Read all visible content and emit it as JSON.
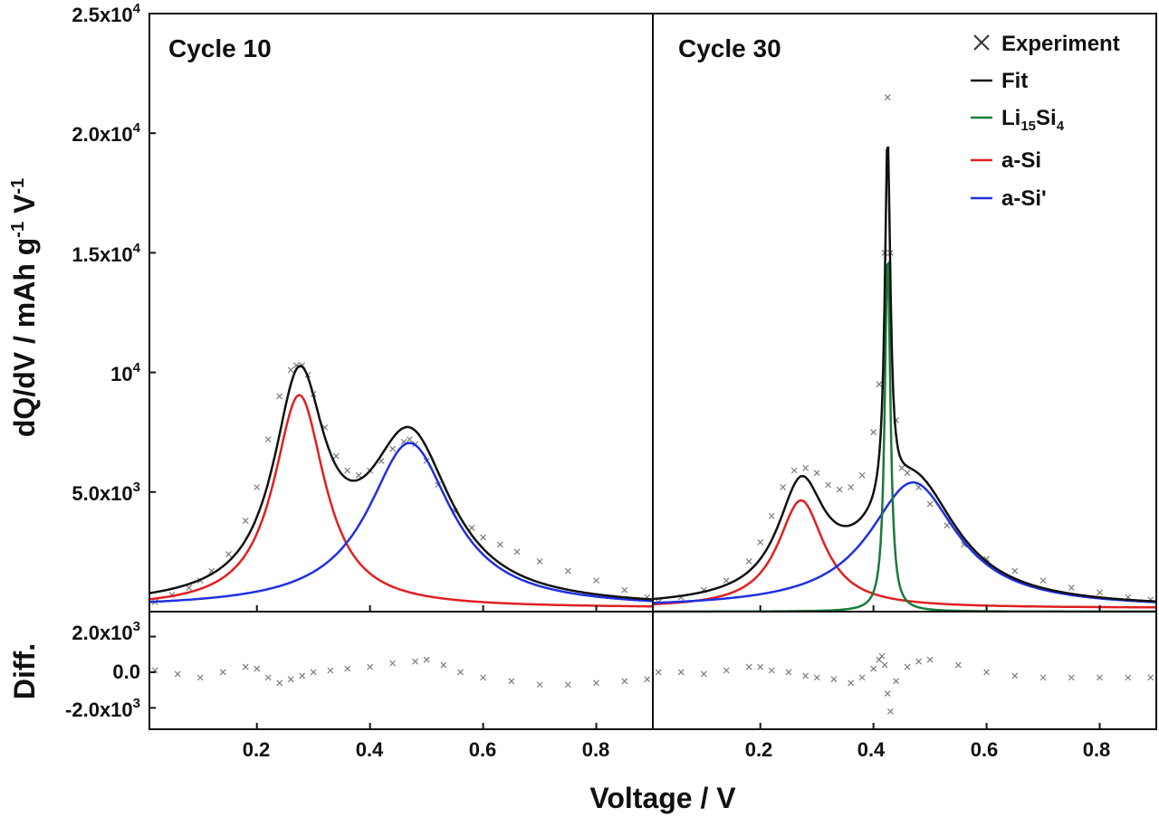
{
  "figure": {
    "xlabel": "Voltage / V",
    "ylabel": "dQ/dV / mAh g",
    "ylabel_sup1": "-1",
    "ylabel_mid": " V",
    "ylabel_sup2": "-1",
    "diff_label": "Diff.",
    "x_ticks": [
      "0.2",
      "0.4",
      "0.6",
      "0.8"
    ],
    "y_ticks": [
      {
        "mant": "2.5x10",
        "exp": "4"
      },
      {
        "mant": "2.0x10",
        "exp": "4"
      },
      {
        "mant": "1.5x10",
        "exp": "4"
      },
      {
        "mant": "10",
        "exp": "4"
      },
      {
        "mant": "5.0x10",
        "exp": "3"
      }
    ],
    "diff_ticks": [
      {
        "mant": "2.0x10",
        "exp": "3"
      },
      {
        "mant": "0.0",
        "exp": ""
      },
      {
        "mant": "-2.0x10",
        "exp": "3"
      }
    ],
    "legend": {
      "experiment": "Experiment",
      "fit": "Fit",
      "li_main": "Li",
      "li_sub1": "15",
      "li_mid": "Si",
      "li_sub2": "4",
      "asi": "a-Si",
      "asi_prime": "a-Si'"
    }
  },
  "colors": {
    "experiment": "#7a7a7a",
    "fit": "#111111",
    "li15si4": "#1a7a3a",
    "asi": "#e02020",
    "asi_prime": "#2030e0"
  },
  "chart_data": [
    {
      "type": "line",
      "title": "Cycle 10",
      "xlabel": "Voltage / V",
      "ylabel": "dQ/dV / mAh g-1 V-1",
      "xlim": [
        0.01,
        0.9
      ],
      "ylim": [
        0,
        25000
      ],
      "grid": false,
      "components": {
        "asi": {
          "center": 0.275,
          "height": 8900,
          "width": 0.055,
          "base": 150
        },
        "asi_prime": {
          "center": 0.47,
          "height": 6900,
          "width": 0.09,
          "base": 150
        }
      },
      "series": [
        {
          "name": "Experiment",
          "style": "markers-x",
          "x": [
            0.02,
            0.05,
            0.08,
            0.1,
            0.12,
            0.15,
            0.18,
            0.2,
            0.22,
            0.24,
            0.26,
            0.27,
            0.28,
            0.29,
            0.3,
            0.32,
            0.34,
            0.36,
            0.38,
            0.4,
            0.42,
            0.44,
            0.46,
            0.47,
            0.48,
            0.5,
            0.52,
            0.55,
            0.58,
            0.6,
            0.63,
            0.66,
            0.7,
            0.75,
            0.8,
            0.85,
            0.89
          ],
          "y": [
            400,
            700,
            1000,
            1300,
            1700,
            2400,
            3800,
            5200,
            7200,
            9000,
            10100,
            10300,
            10300,
            9900,
            9100,
            7700,
            6500,
            5900,
            5700,
            5900,
            6300,
            6800,
            7100,
            7200,
            7000,
            6300,
            5300,
            4200,
            3500,
            3100,
            2800,
            2500,
            2100,
            1700,
            1300,
            900,
            600
          ]
        },
        {
          "name": "Fit",
          "style": "line",
          "x": [],
          "y": []
        },
        {
          "name": "a-Si",
          "style": "line",
          "x": [],
          "y": []
        },
        {
          "name": "a-Si'",
          "style": "line",
          "x": [],
          "y": []
        }
      ],
      "diff": {
        "ylim": [
          -3200,
          3400
        ],
        "x": [
          0.02,
          0.06,
          0.1,
          0.14,
          0.18,
          0.2,
          0.22,
          0.24,
          0.26,
          0.28,
          0.3,
          0.33,
          0.36,
          0.4,
          0.44,
          0.48,
          0.5,
          0.53,
          0.56,
          0.6,
          0.65,
          0.7,
          0.75,
          0.8,
          0.85,
          0.89
        ],
        "y": [
          100,
          -100,
          -300,
          0,
          300,
          200,
          -300,
          -600,
          -400,
          -200,
          0,
          100,
          200,
          300,
          500,
          600,
          700,
          400,
          0,
          -300,
          -500,
          -700,
          -700,
          -600,
          -500,
          -400
        ]
      }
    },
    {
      "type": "line",
      "title": "Cycle 30",
      "xlabel": "Voltage / V",
      "xlim": [
        0.01,
        0.9
      ],
      "ylim": [
        0,
        25000
      ],
      "grid": false,
      "legend_position": "top-right",
      "components": {
        "li15si4": {
          "center": 0.425,
          "height": 15000,
          "width": 0.006,
          "base": 0
        },
        "asi": {
          "center": 0.272,
          "height": 4500,
          "width": 0.05,
          "base": 150
        },
        "asi_prime": {
          "center": 0.47,
          "height": 5250,
          "width": 0.095,
          "base": 150
        }
      },
      "series": [
        {
          "name": "Experiment",
          "style": "markers-x",
          "x": [
            0.02,
            0.06,
            0.1,
            0.14,
            0.18,
            0.2,
            0.22,
            0.24,
            0.26,
            0.28,
            0.3,
            0.32,
            0.34,
            0.36,
            0.38,
            0.4,
            0.41,
            0.42,
            0.425,
            0.43,
            0.44,
            0.45,
            0.46,
            0.48,
            0.5,
            0.53,
            0.56,
            0.6,
            0.65,
            0.7,
            0.75,
            0.8,
            0.85,
            0.89
          ],
          "y": [
            400,
            600,
            900,
            1300,
            2100,
            2900,
            4000,
            5200,
            5900,
            6000,
            5800,
            5300,
            5100,
            5200,
            5700,
            7500,
            9500,
            15000,
            21500,
            15000,
            8000,
            6000,
            5800,
            5200,
            4500,
            3600,
            2800,
            2200,
            1700,
            1300,
            1000,
            800,
            600,
            500
          ]
        },
        {
          "name": "Fit",
          "style": "line",
          "x": [],
          "y": []
        },
        {
          "name": "Li15Si4",
          "style": "line",
          "x": [],
          "y": []
        },
        {
          "name": "a-Si",
          "style": "line",
          "x": [],
          "y": []
        },
        {
          "name": "a-Si'",
          "style": "line",
          "x": [],
          "y": []
        }
      ],
      "diff": {
        "ylim": [
          -3200,
          3400
        ],
        "x": [
          0.02,
          0.06,
          0.1,
          0.14,
          0.18,
          0.2,
          0.22,
          0.25,
          0.28,
          0.3,
          0.33,
          0.36,
          0.38,
          0.4,
          0.41,
          0.415,
          0.42,
          0.425,
          0.43,
          0.44,
          0.46,
          0.48,
          0.5,
          0.55,
          0.6,
          0.65,
          0.7,
          0.75,
          0.8,
          0.85,
          0.89
        ],
        "y": [
          0,
          0,
          -100,
          100,
          300,
          300,
          100,
          0,
          -200,
          -300,
          -400,
          -600,
          -300,
          200,
          700,
          900,
          400,
          -1200,
          -2200,
          -500,
          300,
          600,
          700,
          400,
          0,
          -200,
          -300,
          -300,
          -300,
          -300,
          -300
        ]
      }
    }
  ]
}
